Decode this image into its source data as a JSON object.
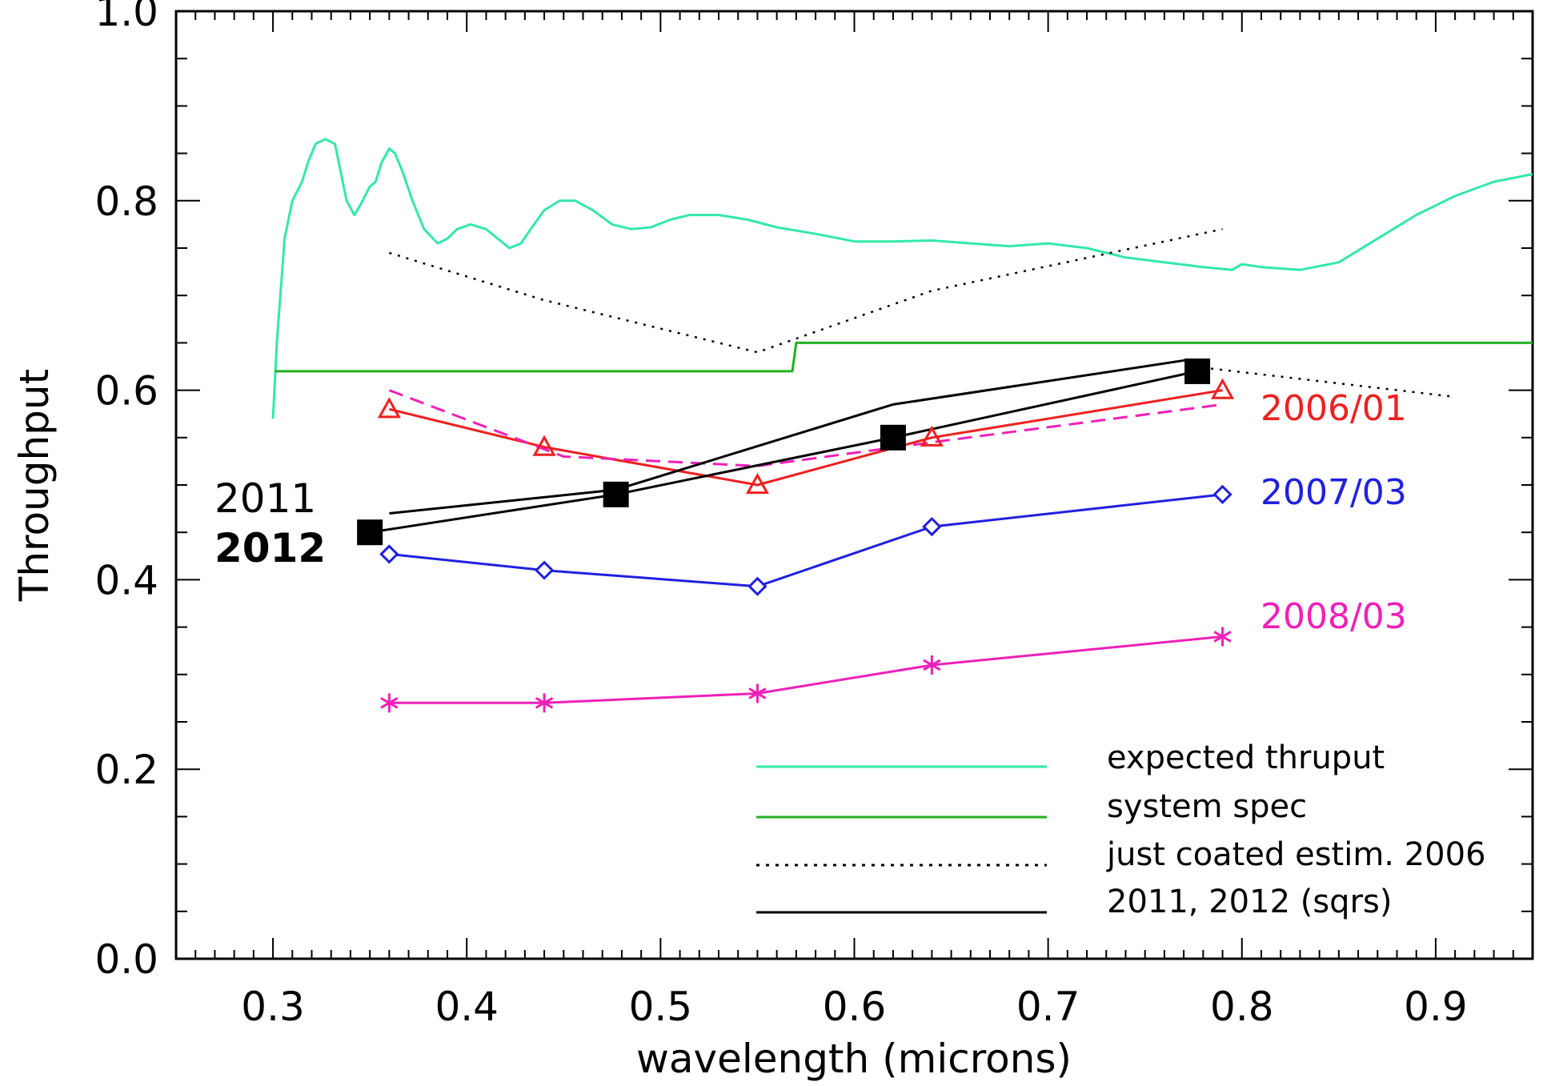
{
  "chart_data": {
    "type": "line",
    "xlabel": "wavelength (microns)",
    "ylabel": "Throughput",
    "xlim": [
      0.25,
      0.95
    ],
    "ylim": [
      0.0,
      1.0
    ],
    "xticks": [
      "0.3",
      "0.4",
      "0.5",
      "0.6",
      "0.7",
      "0.8",
      "0.9"
    ],
    "xtick_values": [
      0.3,
      0.4,
      0.5,
      0.6,
      0.7,
      0.8,
      0.9
    ],
    "yticks": [
      "0.0",
      "0.2",
      "0.4",
      "0.6",
      "0.8",
      "1.0"
    ],
    "ytick_values": [
      0.0,
      0.2,
      0.4,
      0.6,
      0.8,
      1.0
    ],
    "grid": false,
    "legend_position": "bottom-right",
    "legend": [
      {
        "label": "expected thruput",
        "color": "#33e8a8",
        "style": "solid"
      },
      {
        "label": "system spec",
        "color": "#22b022",
        "style": "solid"
      },
      {
        "label": "just coated estim. 2006",
        "color": "#000000",
        "style": "dotted"
      },
      {
        "label": "2011, 2012 (sqrs)",
        "color": "#000000",
        "style": "solid"
      }
    ],
    "series_labels": [
      {
        "text": "2006/01",
        "color": "#ee2020"
      },
      {
        "text": "2007/03",
        "color": "#2020e0"
      },
      {
        "text": "2008/03",
        "color": "#ee20b8"
      }
    ],
    "year_labels": [
      "2011",
      "2012"
    ],
    "series": [
      {
        "key": "expected",
        "color": "#33e8a8",
        "style": "solid",
        "marker": "none",
        "x": [
          0.3,
          0.302,
          0.306,
          0.31,
          0.315,
          0.318,
          0.322,
          0.327,
          0.332,
          0.335,
          0.338,
          0.342,
          0.345,
          0.35,
          0.353,
          0.356,
          0.36,
          0.363,
          0.367,
          0.372,
          0.378,
          0.385,
          0.39,
          0.395,
          0.402,
          0.41,
          0.416,
          0.422,
          0.428,
          0.433,
          0.44,
          0.448,
          0.456,
          0.465,
          0.475,
          0.485,
          0.495,
          0.505,
          0.515,
          0.53,
          0.545,
          0.56,
          0.58,
          0.6,
          0.62,
          0.64,
          0.66,
          0.68,
          0.7,
          0.72,
          0.74,
          0.76,
          0.78,
          0.795,
          0.8,
          0.81,
          0.83,
          0.85,
          0.87,
          0.89,
          0.91,
          0.93,
          0.95
        ],
        "y": [
          0.57,
          0.65,
          0.76,
          0.8,
          0.82,
          0.84,
          0.86,
          0.865,
          0.86,
          0.83,
          0.8,
          0.785,
          0.795,
          0.815,
          0.82,
          0.84,
          0.855,
          0.85,
          0.83,
          0.8,
          0.77,
          0.755,
          0.76,
          0.77,
          0.775,
          0.77,
          0.76,
          0.75,
          0.755,
          0.77,
          0.79,
          0.8,
          0.8,
          0.79,
          0.775,
          0.77,
          0.772,
          0.78,
          0.785,
          0.785,
          0.78,
          0.772,
          0.765,
          0.757,
          0.757,
          0.758,
          0.755,
          0.752,
          0.755,
          0.75,
          0.74,
          0.735,
          0.73,
          0.727,
          0.733,
          0.73,
          0.727,
          0.735,
          0.76,
          0.785,
          0.805,
          0.82,
          0.828
        ]
      },
      {
        "key": "system-spec",
        "color": "#22b022",
        "style": "solid",
        "marker": "none",
        "x": [
          0.301,
          0.568,
          0.57,
          0.95
        ],
        "y": [
          0.62,
          0.62,
          0.65,
          0.65
        ]
      },
      {
        "key": "just-coated-2006",
        "color": "#000000",
        "style": "dotted",
        "marker": "none",
        "x": [
          0.36,
          0.44,
          0.55,
          0.64,
          0.79
        ],
        "y": [
          0.745,
          0.695,
          0.64,
          0.705,
          0.77
        ]
      },
      {
        "key": "just-coated-2006-extension",
        "color": "#000000",
        "style": "dotted",
        "marker": "none",
        "x": [
          0.775,
          0.91
        ],
        "y": [
          0.625,
          0.593
        ]
      },
      {
        "key": "2006-01",
        "color": "#ee2020",
        "style": "solid",
        "marker": "triangle",
        "x": [
          0.36,
          0.44,
          0.55,
          0.64,
          0.79
        ],
        "y": [
          0.58,
          0.54,
          0.5,
          0.55,
          0.6
        ]
      },
      {
        "key": "2006-01-dashed",
        "color": "#ee20b8",
        "style": "dashed",
        "marker": "none",
        "x": [
          0.36,
          0.45,
          0.55,
          0.64,
          0.79
        ],
        "y": [
          0.6,
          0.53,
          0.52,
          0.545,
          0.585
        ]
      },
      {
        "key": "2007-03",
        "color": "#2020e0",
        "style": "solid",
        "marker": "diamond",
        "x": [
          0.36,
          0.44,
          0.55,
          0.64,
          0.79
        ],
        "y": [
          0.427,
          0.41,
          0.393,
          0.456,
          0.49
        ]
      },
      {
        "key": "2008-03",
        "color": "#ee20b8",
        "style": "solid",
        "marker": "asterisk",
        "x": [
          0.36,
          0.44,
          0.55,
          0.64,
          0.79
        ],
        "y": [
          0.27,
          0.27,
          0.28,
          0.31,
          0.34
        ]
      },
      {
        "key": "2011",
        "color": "#000000",
        "style": "solid",
        "marker": "none",
        "x": [
          0.36,
          0.477,
          0.62,
          0.772
        ],
        "y": [
          0.47,
          0.495,
          0.585,
          0.632
        ]
      },
      {
        "key": "2012",
        "color": "#000000",
        "style": "solid",
        "marker": "square",
        "x": [
          0.35,
          0.477,
          0.62,
          0.777
        ],
        "y": [
          0.45,
          0.49,
          0.55,
          0.62
        ]
      }
    ]
  }
}
